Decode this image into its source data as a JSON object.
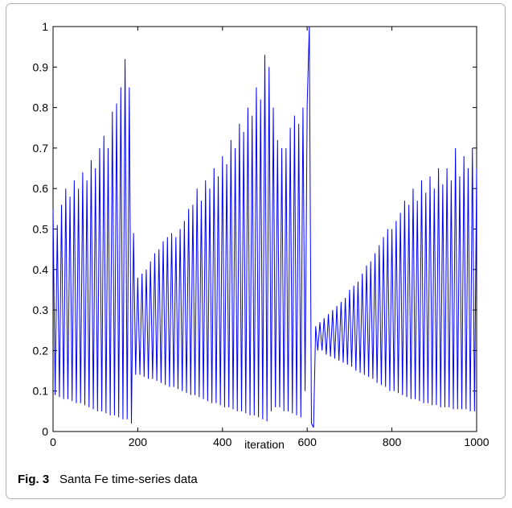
{
  "chart_data": {
    "type": "line",
    "xlabel": "iteration",
    "caption_label": "Fig. 3",
    "caption": "Santa Fe time-series data",
    "xlim": [
      0,
      1000
    ],
    "xticks": [
      0,
      200,
      400,
      600,
      800,
      1000
    ],
    "ylim": [
      0,
      1
    ],
    "yticks": [
      0,
      0.1,
      0.2,
      0.3,
      0.4,
      0.5,
      0.6,
      0.7,
      0.8,
      0.9,
      1
    ],
    "series": [
      {
        "color": "#0000ff",
        "x": [
          0,
          5,
          10,
          15,
          20,
          25,
          30,
          35,
          40,
          45,
          50,
          55,
          60,
          65,
          70,
          75,
          80,
          85,
          90,
          95,
          100,
          105,
          110,
          115,
          120,
          125,
          130,
          135,
          140,
          145,
          150,
          155,
          160,
          165,
          170,
          175,
          180,
          185,
          190,
          195,
          200,
          205,
          210,
          215,
          220,
          225,
          230,
          235,
          240,
          245,
          250,
          255,
          260,
          265,
          270,
          275,
          280,
          285,
          290,
          295,
          300,
          305,
          310,
          315,
          320,
          325,
          330,
          335,
          340,
          345,
          350,
          355,
          360,
          365,
          370,
          375,
          380,
          385,
          390,
          395,
          400,
          405,
          410,
          415,
          420,
          425,
          430,
          435,
          440,
          445,
          450,
          455,
          460,
          465,
          470,
          475,
          480,
          485,
          490,
          495,
          500,
          505,
          510,
          515,
          520,
          525,
          530,
          535,
          540,
          545,
          550,
          555,
          560,
          565,
          570,
          575,
          580,
          585,
          590,
          595,
          600,
          605,
          610,
          615,
          620,
          625,
          630,
          635,
          640,
          645,
          650,
          655,
          660,
          665,
          670,
          675,
          680,
          685,
          690,
          695,
          700,
          705,
          710,
          715,
          720,
          725,
          730,
          735,
          740,
          745,
          750,
          755,
          760,
          765,
          770,
          775,
          780,
          785,
          790,
          795,
          800,
          805,
          810,
          815,
          820,
          825,
          830,
          835,
          840,
          845,
          850,
          855,
          860,
          865,
          870,
          875,
          880,
          885,
          890,
          895,
          900,
          905,
          910,
          915,
          920,
          925,
          930,
          935,
          940,
          945,
          950,
          955,
          960,
          965,
          970,
          975,
          980,
          985,
          990,
          995,
          1000
        ],
        "values": [
          0.55,
          0.09,
          0.51,
          0.085,
          0.56,
          0.08,
          0.6,
          0.08,
          0.58,
          0.075,
          0.62,
          0.07,
          0.6,
          0.07,
          0.64,
          0.065,
          0.62,
          0.06,
          0.67,
          0.055,
          0.65,
          0.05,
          0.7,
          0.05,
          0.73,
          0.045,
          0.7,
          0.04,
          0.79,
          0.04,
          0.81,
          0.035,
          0.85,
          0.03,
          0.92,
          0.03,
          0.85,
          0.02,
          0.49,
          0.14,
          0.38,
          0.14,
          0.39,
          0.135,
          0.4,
          0.13,
          0.42,
          0.13,
          0.44,
          0.125,
          0.45,
          0.12,
          0.47,
          0.115,
          0.48,
          0.11,
          0.49,
          0.11,
          0.48,
          0.105,
          0.5,
          0.1,
          0.52,
          0.095,
          0.55,
          0.09,
          0.56,
          0.09,
          0.6,
          0.085,
          0.57,
          0.08,
          0.62,
          0.075,
          0.6,
          0.07,
          0.65,
          0.07,
          0.63,
          0.065,
          0.68,
          0.06,
          0.66,
          0.06,
          0.72,
          0.055,
          0.7,
          0.05,
          0.76,
          0.05,
          0.74,
          0.045,
          0.8,
          0.04,
          0.78,
          0.04,
          0.85,
          0.035,
          0.82,
          0.03,
          0.93,
          0.025,
          0.9,
          0.05,
          0.8,
          0.06,
          0.72,
          0.06,
          0.7,
          0.05,
          0.7,
          0.05,
          0.75,
          0.045,
          0.78,
          0.04,
          0.76,
          0.035,
          0.8,
          0.1,
          0.81,
          1.0,
          0.02,
          0.01,
          0.26,
          0.2,
          0.27,
          0.2,
          0.28,
          0.19,
          0.29,
          0.185,
          0.3,
          0.18,
          0.31,
          0.175,
          0.32,
          0.17,
          0.33,
          0.165,
          0.35,
          0.16,
          0.36,
          0.15,
          0.37,
          0.145,
          0.39,
          0.14,
          0.41,
          0.135,
          0.42,
          0.13,
          0.44,
          0.12,
          0.46,
          0.115,
          0.48,
          0.11,
          0.5,
          0.1,
          0.5,
          0.1,
          0.52,
          0.095,
          0.54,
          0.09,
          0.57,
          0.085,
          0.56,
          0.08,
          0.6,
          0.08,
          0.57,
          0.075,
          0.62,
          0.07,
          0.59,
          0.07,
          0.63,
          0.065,
          0.6,
          0.065,
          0.65,
          0.06,
          0.61,
          0.06,
          0.65,
          0.06,
          0.62,
          0.055,
          0.7,
          0.055,
          0.63,
          0.055,
          0.68,
          0.055,
          0.65,
          0.05,
          0.7,
          0.05,
          0.65
        ]
      }
    ]
  }
}
